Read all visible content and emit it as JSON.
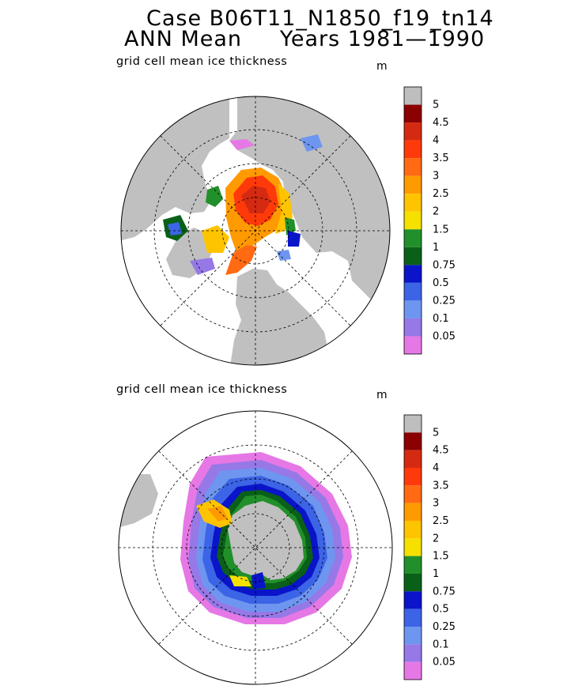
{
  "title": {
    "line1": "Case B06T11_N1850_f19_tn14",
    "line2": "ANN Mean     Years 1981—1990"
  },
  "panels": [
    {
      "id": "north",
      "subtitle": "grid cell mean ice thickness",
      "unit": "m",
      "hemisphere": "north-polar-stereographic"
    },
    {
      "id": "south",
      "subtitle": "grid cell mean ice thickness",
      "unit": "m",
      "hemisphere": "south-polar-stereographic"
    }
  ],
  "colorbar": {
    "levels": [
      "5",
      "4.5",
      "4",
      "3.5",
      "3",
      "2.5",
      "2",
      "1.5",
      "1",
      "0.75",
      "0.5",
      "0.25",
      "0.1",
      "0.05"
    ],
    "colors": [
      "#bebebe",
      "#8b0000",
      "#d42a12",
      "#ff3a0a",
      "#ff6a12",
      "#ff9a00",
      "#ffc400",
      "#f5e000",
      "#22902a",
      "#0a6018",
      "#0a14c8",
      "#3c64e6",
      "#6e96f0",
      "#9678e6",
      "#e678e6"
    ]
  },
  "map_colors": {
    "land": "#c0c0c0",
    "ocean": "#ffffff",
    "grid": "#000000"
  }
}
